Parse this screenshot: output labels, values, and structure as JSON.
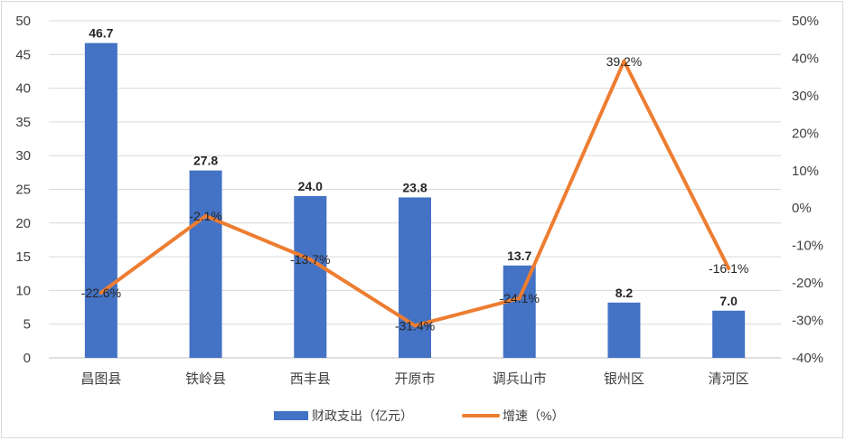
{
  "chart_data": {
    "type": "bar",
    "categories": [
      "昌图县",
      "铁岭县",
      "西丰县",
      "开原市",
      "调兵山市",
      "银州区",
      "清河区"
    ],
    "series": [
      {
        "name": "财政支出（亿元）",
        "type": "bar",
        "axis": "left",
        "values": [
          46.7,
          27.8,
          24.0,
          23.8,
          13.7,
          8.2,
          7.0
        ],
        "labels": [
          "46.7",
          "27.8",
          "24.0",
          "23.8",
          "13.7",
          "8.2",
          "7.0"
        ],
        "color": "#4472C4"
      },
      {
        "name": "增速（%）",
        "type": "line",
        "axis": "right",
        "values": [
          -22.6,
          -2.1,
          -13.7,
          -31.4,
          -24.1,
          39.2,
          -16.1
        ],
        "labels": [
          "-22.6%",
          "-2.1%",
          "-13.7%",
          "-31.4%",
          "-24.1%",
          "39.2%",
          "-16.1%"
        ],
        "color": "#ED7D31"
      }
    ],
    "y_left": {
      "min": 0,
      "max": 50,
      "step": 5,
      "tick_labels": [
        "0",
        "5",
        "10",
        "15",
        "20",
        "25",
        "30",
        "35",
        "40",
        "45",
        "50"
      ]
    },
    "y_right": {
      "min": -40,
      "max": 50,
      "step": 10,
      "tick_labels": [
        "-40%",
        "-30%",
        "-20%",
        "-10%",
        "0%",
        "10%",
        "20%",
        "30%",
        "40%",
        "50%"
      ]
    },
    "grid": true,
    "legend_position": "bottom",
    "legend": [
      {
        "label": "财政支出（亿元）",
        "kind": "bar",
        "color": "#4472C4"
      },
      {
        "label": "增速（%）",
        "kind": "line",
        "color": "#ED7D31"
      }
    ]
  }
}
